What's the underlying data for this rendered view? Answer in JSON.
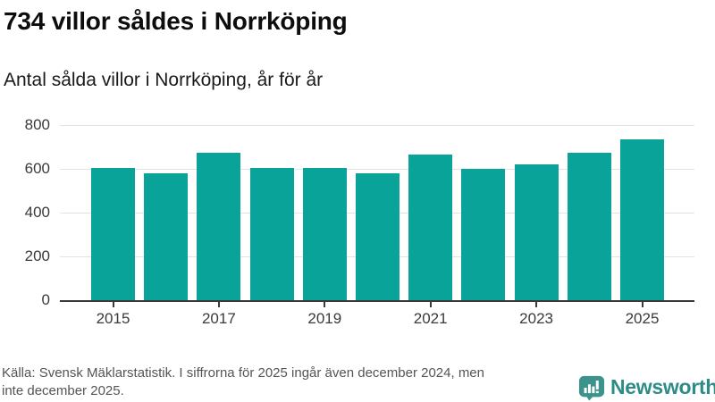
{
  "header": {
    "title": "734 villor såldes i Norrköping",
    "subtitle": "Antal sålda villor i Norrköping, år för år"
  },
  "chart_data": {
    "type": "bar",
    "title": "Antal sålda villor i Norrköping, år för år",
    "categories": [
      "2015",
      "2016",
      "2017",
      "2018",
      "2019",
      "2020",
      "2021",
      "2022",
      "2023",
      "2024",
      "2025"
    ],
    "values": [
      605,
      580,
      675,
      603,
      603,
      578,
      667,
      602,
      620,
      672,
      734
    ],
    "highlight_value": 734,
    "xlabel": "",
    "ylabel": "",
    "ylim": [
      0,
      800
    ],
    "y_ticks": [
      0,
      200,
      400,
      600,
      800
    ],
    "x_tick_labels": [
      "2015",
      "2017",
      "2019",
      "2021",
      "2023",
      "2025"
    ],
    "grid": "horizontal",
    "legend": "none",
    "bar_color": "#0AA39A"
  },
  "colors": {
    "bar": "#0AA39A",
    "gridline": "#e3e3e3",
    "axis": "#3a3a3a",
    "title_text": "#0d0d0d",
    "footer_text": "#555555",
    "logo_icon": "#3B938C",
    "logo_text": "#2E8C87"
  },
  "footer": {
    "source_lines": [
      "Källa: Svensk Mäklarstatistik. I siffrorna för 2025 ingår även december 2024, men",
      "inte december 2025."
    ],
    "logo_text": "Newsworthy",
    "logo_icon": "bar-chart-speech-bubble-icon"
  }
}
